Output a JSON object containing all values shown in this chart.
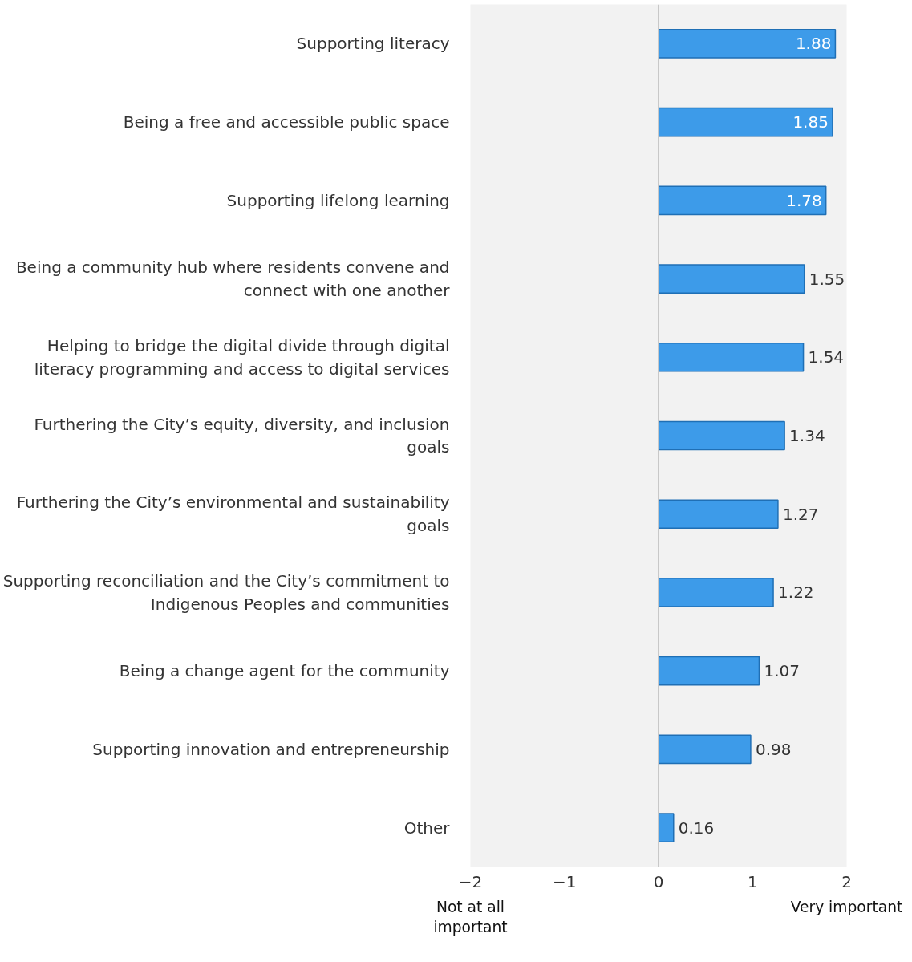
{
  "chart_data": {
    "type": "bar",
    "orientation": "horizontal",
    "categories": [
      "Supporting literacy",
      "Being a free and accessible public space",
      "Supporting lifelong learning",
      "Being a community hub where residents convene and connect with one another",
      "Helping to bridge the digital divide through digital literacy programming and access to digital services",
      "Furthering the City’s equity, diversity, and inclusion goals",
      "Furthering the City’s environmental and sustainability goals",
      "Supporting reconciliation and the City’s commitment to Indigenous Peoples and communities",
      "Being a change agent for the community",
      "Supporting innovation and entrepreneurship",
      "Other"
    ],
    "values": [
      1.88,
      1.85,
      1.78,
      1.55,
      1.54,
      1.34,
      1.27,
      1.22,
      1.07,
      0.98,
      0.16
    ],
    "color": "#3d9be9",
    "xlim": [
      -2,
      2
    ],
    "xticks": [
      -2,
      -1,
      0,
      1,
      2
    ],
    "data_labels": true,
    "grid": false,
    "legend": false,
    "ref_lines": [
      {
        "axis": "x",
        "value": 0,
        "color": "#c8c8c8"
      }
    ],
    "annotations": [
      "Not at all important",
      "Very important"
    ]
  }
}
